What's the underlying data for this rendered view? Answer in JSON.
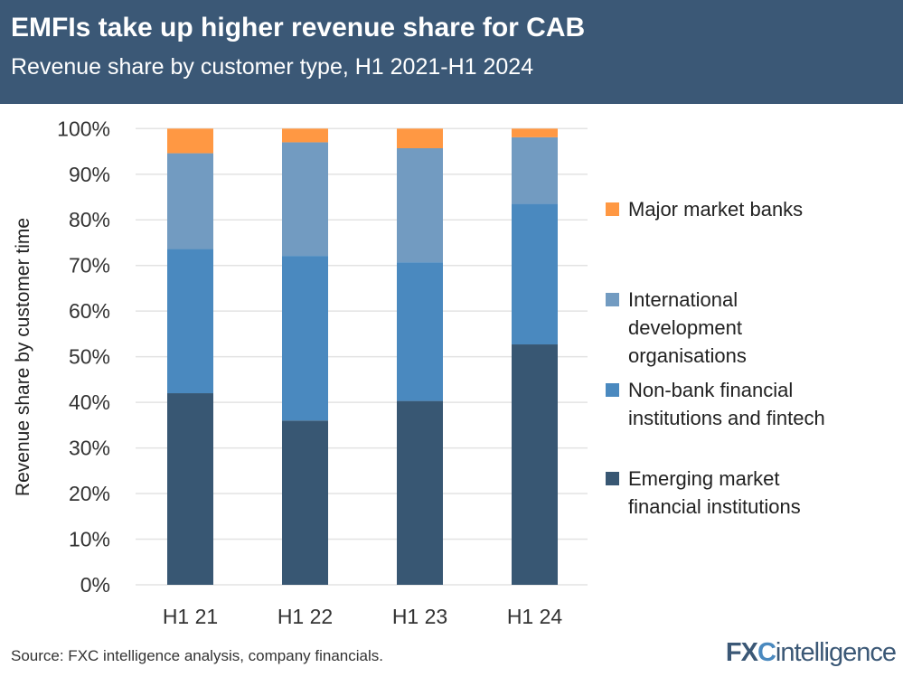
{
  "header": {
    "title": "EMFIs take up higher revenue share for CAB",
    "subtitle": "Revenue share by customer type, H1 2021-H1 2024"
  },
  "footer": {
    "source": "Source: FXC intelligence analysis, company financials.",
    "logo": "FXCintelligence"
  },
  "chart_data": {
    "type": "bar",
    "stacked": true,
    "categories": [
      "H1 21",
      "H1 22",
      "H1 23",
      "H1 24"
    ],
    "ylabel": "Revenue share by customer time",
    "ylim": [
      0,
      100
    ],
    "yticks": [
      "0%",
      "10%",
      "20%",
      "30%",
      "40%",
      "50%",
      "60%",
      "70%",
      "80%",
      "90%",
      "100%"
    ],
    "grid": true,
    "legend_position": "right",
    "series": [
      {
        "name": "Emerging market financial institutions",
        "color": "#385773",
        "values": [
          42.0,
          36.0,
          40.3,
          52.7
        ]
      },
      {
        "name": "Non-bank financial institutions and fintech",
        "color": "#4a89bf",
        "values": [
          31.6,
          36.1,
          30.4,
          30.8
        ]
      },
      {
        "name": "International development organisations",
        "color": "#729bc1",
        "values": [
          21.0,
          24.9,
          25.0,
          14.6
        ]
      },
      {
        "name": "Major market banks",
        "color": "#ff9843",
        "values": [
          5.4,
          3.0,
          4.3,
          1.9
        ]
      }
    ]
  }
}
